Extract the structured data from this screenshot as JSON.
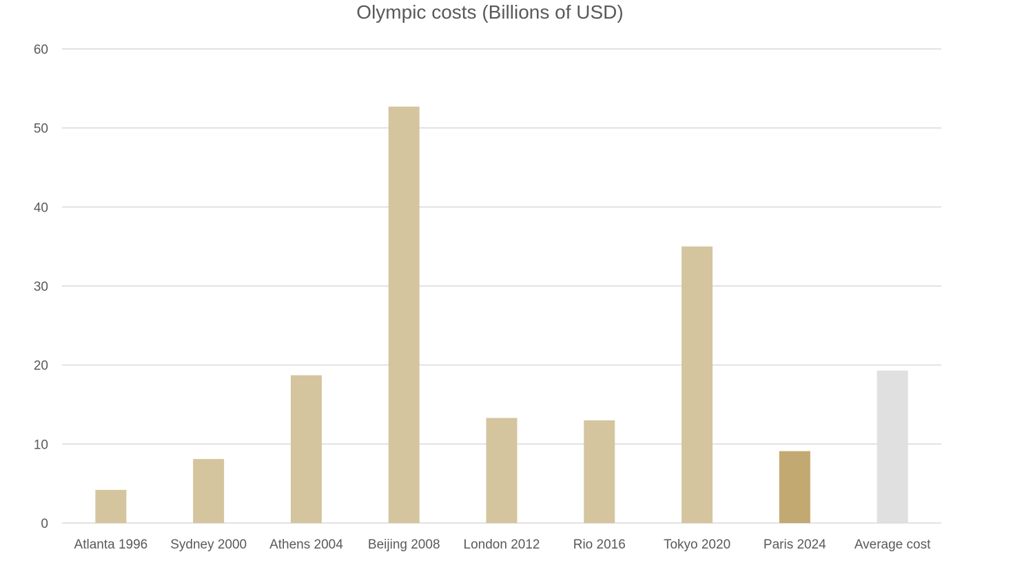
{
  "chart_data": {
    "type": "bar",
    "title": "Olympic costs (Billions of USD)",
    "xlabel": "",
    "ylabel": "",
    "categories": [
      "Atlanta 1996",
      "Sydney 2000",
      "Athens 2004",
      "Beijing 2008",
      "London 2012",
      "Rio 2016",
      "Tokyo 2020",
      "Paris 2024",
      "Average cost"
    ],
    "values": [
      4.2,
      8.1,
      18.7,
      52.7,
      13.3,
      13.0,
      35.0,
      9.1,
      19.3
    ],
    "bar_colors": [
      "#d4c59f",
      "#d4c59f",
      "#d4c59f",
      "#d4c59f",
      "#d4c59f",
      "#d4c59f",
      "#d4c59f",
      "#c1a971",
      "#e0e0e0"
    ],
    "ylim": [
      0,
      60
    ],
    "yticks": [
      0,
      10,
      20,
      30,
      40,
      50,
      60
    ],
    "grid": true,
    "legend": "none",
    "colors": {
      "bar": "#d4c59f",
      "highlight": "#c1a971",
      "average": "#e0e0e0",
      "grid": "#d9d9d9",
      "text": "#595959"
    }
  }
}
